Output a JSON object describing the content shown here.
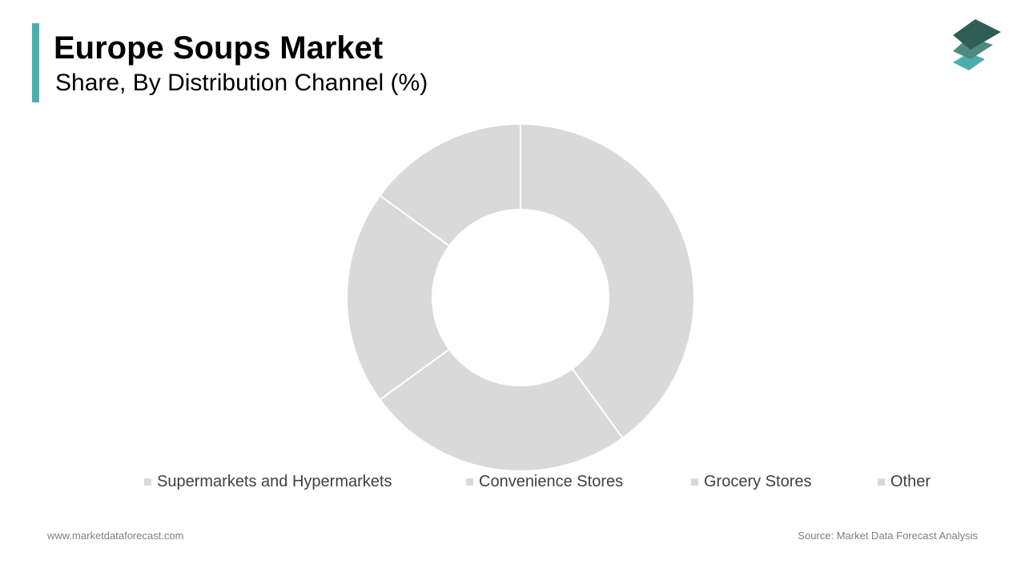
{
  "header": {
    "title": "Europe Soups Market",
    "subtitle": "Share, By Distribution Channel (%)"
  },
  "colors": {
    "accent": "#4aaeae",
    "slice": "#d9d9d9",
    "slice_border": "#ffffff",
    "logo_dark": "#2e5e54",
    "logo_mid": "#4f8a80",
    "logo_light": "#4aaeae"
  },
  "logo": {
    "icon": "stacked-layers-icon"
  },
  "chart_data": {
    "type": "pie",
    "donut": true,
    "title": "Europe Soups Market",
    "subtitle": "Share, By Distribution Channel (%)",
    "categories": [
      "Supermarkets and Hypermarkets",
      "Convenience Stores",
      "Grocery Stores",
      "Other"
    ],
    "values": [
      40,
      25,
      20,
      15
    ],
    "data_labels": false,
    "legend_position": "bottom"
  },
  "legend": {
    "items": [
      {
        "label": "Supermarkets and Hypermarkets"
      },
      {
        "label": "Convenience Stores"
      },
      {
        "label": "Grocery Stores"
      },
      {
        "label": "Other"
      }
    ]
  },
  "footer": {
    "website": "www.marketdataforecast.com",
    "source": "Source: Market Data Forecast Analysis"
  }
}
